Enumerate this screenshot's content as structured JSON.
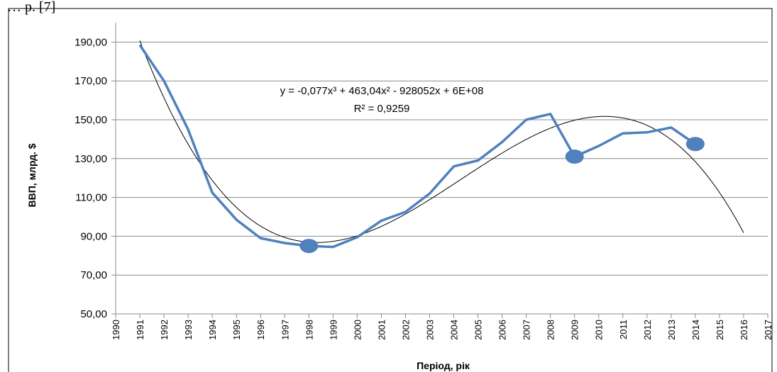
{
  "header_fragment": "… р. [7]",
  "chart_data": {
    "type": "line",
    "xlabel": "Період, рік",
    "ylabel": "ВВП, млрд. $",
    "ylim": [
      50,
      190
    ],
    "y_ticks": [
      "50,00",
      "70,00",
      "90,00",
      "110,00",
      "130,00",
      "150,00",
      "170,00",
      "190,00"
    ],
    "xlim": [
      1990,
      2017
    ],
    "x_ticks": [
      "1990",
      "1991",
      "1992",
      "1993",
      "1994",
      "1995",
      "1996",
      "1997",
      "1998",
      "1999",
      "2000",
      "2001",
      "2002",
      "2003",
      "2004",
      "2005",
      "2006",
      "2007",
      "2008",
      "2009",
      "2010",
      "2011",
      "2012",
      "2013",
      "2014",
      "2015",
      "2016",
      "2017"
    ],
    "grid": "horizontal",
    "series": [
      {
        "x": [
          1991,
          1992,
          1993,
          1994,
          1995,
          1996,
          1997,
          1998,
          1999,
          2000,
          2001,
          2002,
          2003,
          2004,
          2005,
          2006,
          2007,
          2008,
          2009,
          2010,
          2011,
          2012,
          2013,
          2014
        ],
        "values": [
          188.5,
          170.0,
          145.0,
          112.5,
          98.5,
          89.0,
          86.5,
          85.0,
          84.5,
          89.5,
          98.0,
          102.5,
          112.0,
          126.0,
          129.0,
          138.5,
          150.0,
          153.0,
          131.0,
          136.5,
          143.0,
          143.5,
          146.0,
          137.5
        ],
        "color": "#4F81BD",
        "highlighted_x": [
          1998,
          2009,
          2014
        ]
      }
    ],
    "trendline": {
      "type": "poly3",
      "color": "#000000",
      "x_range": [
        1991,
        2016
      ],
      "equation": "y = -0,077x³ + 463,04x² - 928052x + 6E+08",
      "r_squared": "R² = 0,9259"
    }
  }
}
